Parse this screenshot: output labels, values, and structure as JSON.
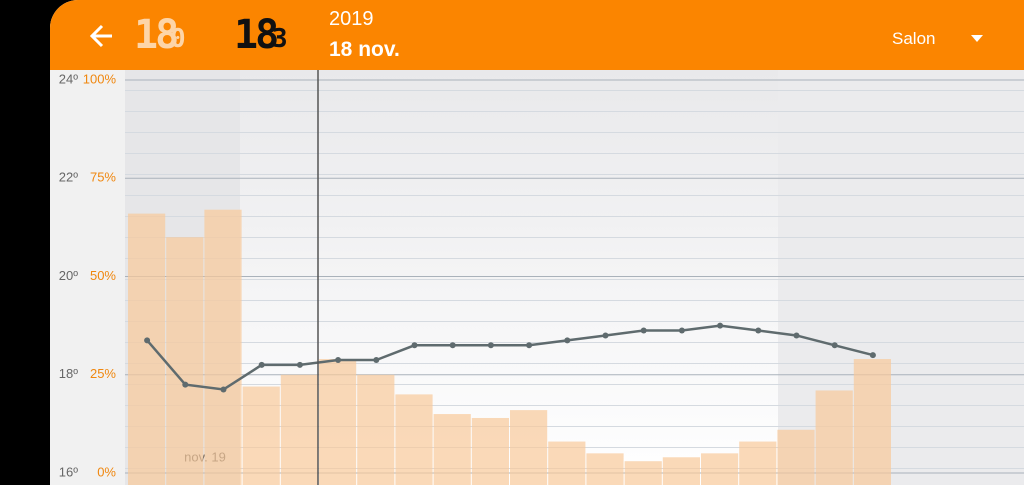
{
  "header": {
    "display_1": "18",
    "display_1_small": "0",
    "display_2": "18",
    "display_2_small": "3",
    "year": "2019",
    "date": "18 nov.",
    "room": "Salon"
  },
  "chart_data": {
    "type": "bar-line",
    "x_date_label": "nov. 19",
    "categories": [
      null,
      null,
      null,
      null,
      null,
      null,
      null,
      null,
      null,
      null,
      null,
      null,
      null,
      null,
      null,
      null,
      null,
      null,
      null,
      null
    ],
    "series": [
      {
        "type": "bar",
        "axis": "y2",
        "color": "#f8c99a",
        "values": [
          66,
          60,
          67,
          22,
          25,
          29,
          25,
          20,
          15,
          14,
          16,
          8,
          5,
          3,
          4,
          5,
          8,
          11,
          21,
          29
        ]
      },
      {
        "type": "line",
        "color": "#5f6b6e",
        "values": [
          18.7,
          17.8,
          17.7,
          18.2,
          18.2,
          18.3,
          18.3,
          18.6,
          18.6,
          18.6,
          18.6,
          18.7,
          18.8,
          18.9,
          18.9,
          19.0,
          18.9,
          18.8,
          18.6,
          18.4
        ]
      }
    ],
    "ylim": [
      16,
      24
    ],
    "yticks": [
      {
        "value": 16,
        "label": "16º"
      },
      {
        "value": 18,
        "label": "18º"
      },
      {
        "value": 20,
        "label": "20º"
      },
      {
        "value": 22,
        "label": "22º"
      },
      {
        "value": 24,
        "label": "24º"
      }
    ],
    "y2lim": [
      0,
      100
    ],
    "y2ticks": [
      {
        "value": 0,
        "label": "0%"
      },
      {
        "value": 25,
        "label": "25%"
      },
      {
        "value": 50,
        "label": "50%"
      },
      {
        "value": 75,
        "label": "75%"
      },
      {
        "value": 100,
        "label": "100%"
      }
    ],
    "grid": true
  }
}
